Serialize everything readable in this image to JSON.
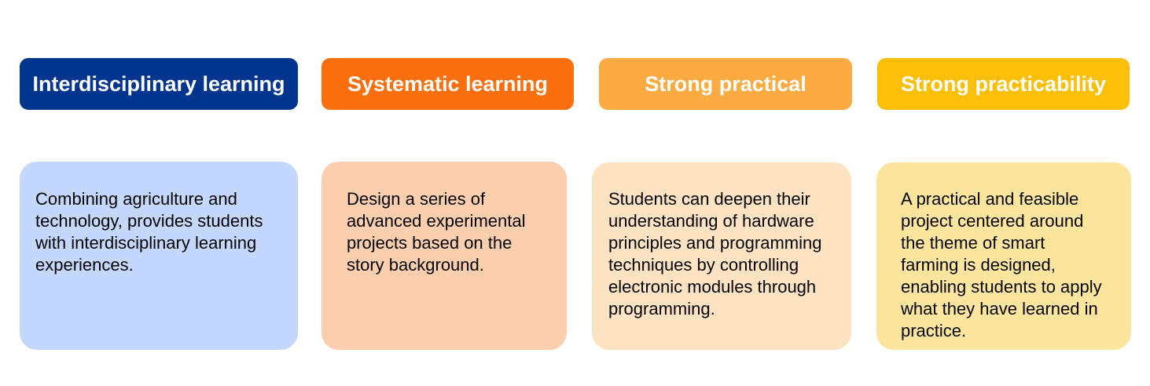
{
  "columns": [
    {
      "header": "Interdisciplinary learning",
      "header_color": "#00358F",
      "card_color": "#C4D8FD",
      "description": "Combining agriculture and technology, provides students with interdisciplinary learning experiences."
    },
    {
      "header": "Systematic learning",
      "header_color": "#FC6F0E",
      "card_color": "#FBCFAD",
      "description": "Design a series of advanced experimental projects based on the story background."
    },
    {
      "header": "Strong practical",
      "header_color": "#FCAB42",
      "card_color": "#FDE3C2",
      "description": "Students can deepen their understanding of hardware principles and programming techniques by controlling electronic modules through programming."
    },
    {
      "header": "Strong practicability",
      "header_color": "#FCBF07",
      "card_color": "#FDE59E",
      "description": "A practical and feasible project centered around the theme of smart farming is designed, enabling students to apply what they have learned in practice."
    }
  ]
}
